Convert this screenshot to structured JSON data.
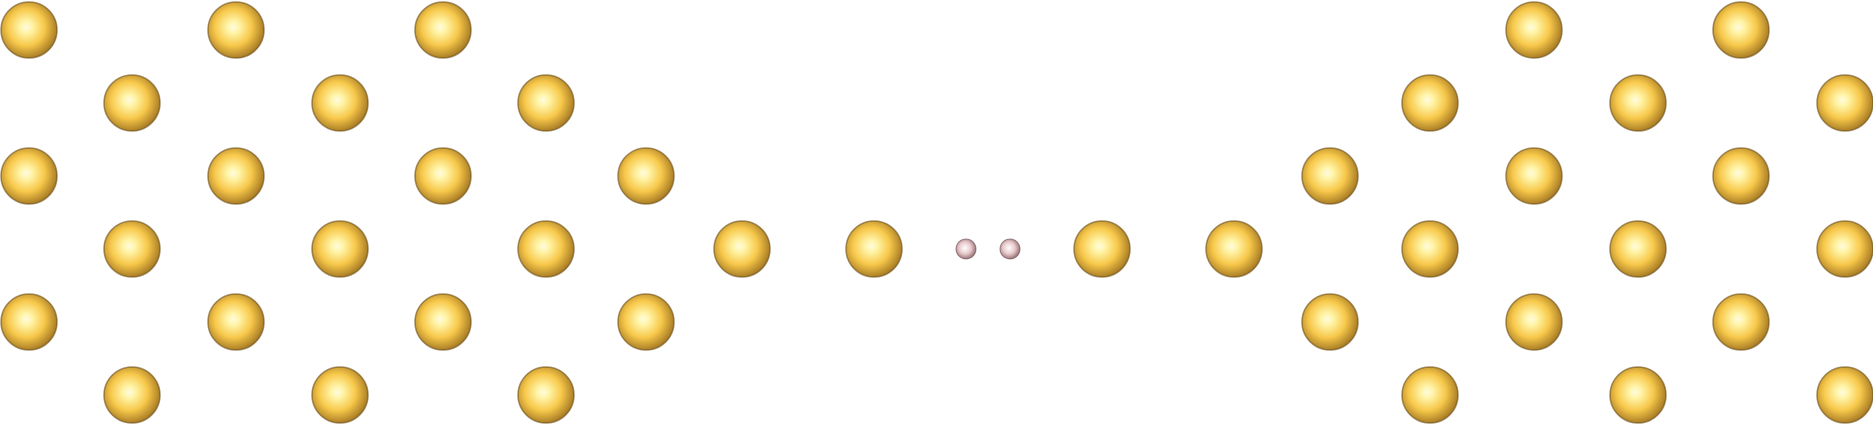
{
  "diagram": {
    "kind": "atomic-structure",
    "background": "#ffffff",
    "atom_types": {
      "gold": {
        "color_center": "#fffbe0",
        "color_mid": "#f7c84a",
        "color_edge": "#9a6e1e",
        "outline": "#6b4c14"
      },
      "hydrogen": {
        "color_center": "#ffffff",
        "color_mid": "#e8c9cc",
        "color_edge": "#8a6468",
        "outline": "#6a4a4e"
      }
    }
  }
}
